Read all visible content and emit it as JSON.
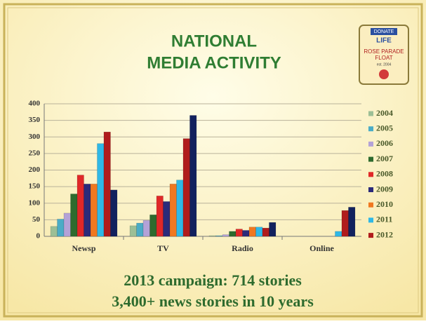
{
  "chart_data": {
    "type": "bar",
    "title_lines": [
      "NATIONAL",
      "MEDIA ACTIVITY"
    ],
    "categories": [
      "Newsp",
      "TV",
      "Radio",
      "Online"
    ],
    "series": [
      {
        "name": "2004",
        "color": "#9cbf96",
        "values": [
          30,
          32,
          2,
          0
        ]
      },
      {
        "name": "2005",
        "color": "#4bacc6",
        "values": [
          52,
          40,
          2,
          0
        ]
      },
      {
        "name": "2006",
        "color": "#b3a2d7",
        "values": [
          70,
          48,
          5,
          0
        ]
      },
      {
        "name": "2007",
        "color": "#2e6b2e",
        "values": [
          128,
          65,
          15,
          0
        ]
      },
      {
        "name": "2008",
        "color": "#e02828",
        "values": [
          185,
          122,
          22,
          0
        ]
      },
      {
        "name": "2009",
        "color": "#2b2b7a",
        "values": [
          158,
          105,
          18,
          0
        ]
      },
      {
        "name": "2010",
        "color": "#f07820",
        "values": [
          158,
          158,
          28,
          0
        ]
      },
      {
        "name": "2011",
        "color": "#2fb8e6",
        "values": [
          280,
          170,
          28,
          15
        ]
      },
      {
        "name": "2012",
        "color": "#b01c1c",
        "values": [
          315,
          295,
          25,
          78
        ]
      },
      {
        "name": null,
        "color": "#12215e",
        "values": [
          140,
          365,
          42,
          88
        ]
      }
    ],
    "ylim": [
      0,
      400
    ],
    "yticks": [
      0,
      50,
      100,
      150,
      200,
      250,
      300,
      350,
      400
    ],
    "grid": true
  },
  "footer": [
    "2013 campaign: 714 stories",
    "3,400+ news stories in 10 years"
  ],
  "logo": {
    "top": "DONATE",
    "middle": "LIFE",
    "line1": "ROSE PARADE",
    "line2": "FLOAT",
    "est": "est. 2004"
  }
}
